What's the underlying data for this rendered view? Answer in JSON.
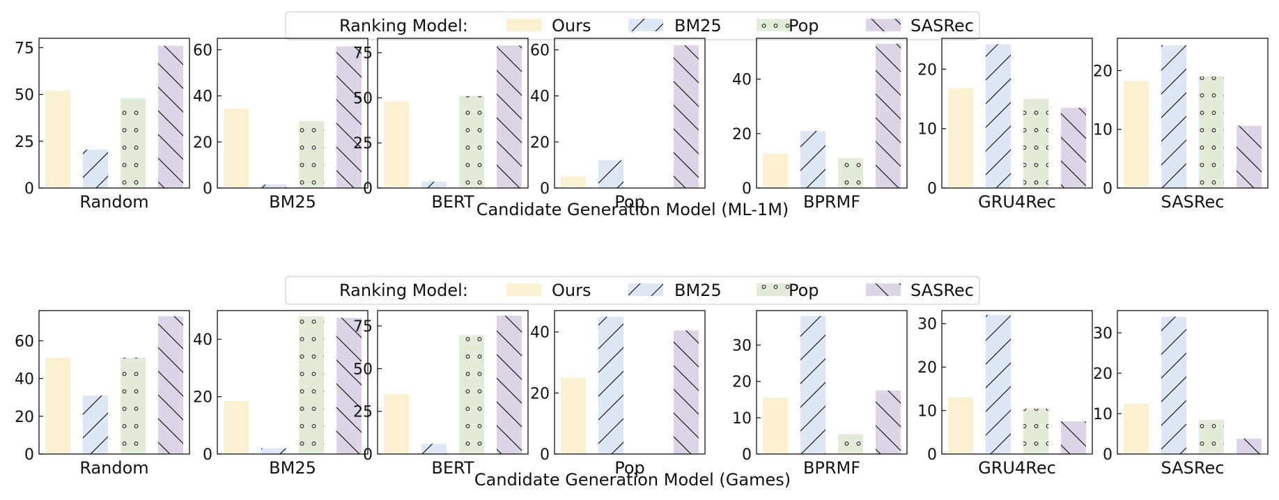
{
  "legend": {
    "title": "Ranking Model:",
    "items": [
      {
        "label": "Ours",
        "color": "#fbf0d2",
        "pattern": "none"
      },
      {
        "label": "BM25",
        "color": "#dde7f5",
        "pattern": "forward-slash"
      },
      {
        "label": "Pop",
        "color": "#e2ecd8",
        "pattern": "dots"
      },
      {
        "label": "SASRec",
        "color": "#ddd5e7",
        "pattern": "back-slash"
      }
    ]
  },
  "chart_data": [
    {
      "type": "bar",
      "xlabel": "Candidate Generation Model (ML-1M)",
      "subplots": [
        {
          "title": "Random",
          "ylim": [
            0,
            80
          ],
          "yticks": [
            "0",
            "25",
            "50",
            "75"
          ],
          "series": [
            {
              "name": "Ours",
              "value": 52
            },
            {
              "name": "BM25",
              "value": 20.5
            },
            {
              "name": "Pop",
              "value": 48
            },
            {
              "name": "SASRec",
              "value": 76
            }
          ]
        },
        {
          "title": "BM25",
          "ylim": [
            0,
            65
          ],
          "yticks": [
            "0",
            "20",
            "40",
            "60"
          ],
          "series": [
            {
              "name": "Ours",
              "value": 34.5
            },
            {
              "name": "BM25",
              "value": 1.5
            },
            {
              "name": "Pop",
              "value": 29
            },
            {
              "name": "SASRec",
              "value": 61.5
            }
          ]
        },
        {
          "title": "BERT",
          "ylim": [
            0,
            83
          ],
          "yticks": [
            "0",
            "25",
            "50",
            "75"
          ],
          "series": [
            {
              "name": "Ours",
              "value": 48
            },
            {
              "name": "BM25",
              "value": 3.5
            },
            {
              "name": "Pop",
              "value": 51
            },
            {
              "name": "SASRec",
              "value": 79
            }
          ]
        },
        {
          "title": "Pop",
          "ylim": [
            0,
            65
          ],
          "yticks": [
            "0",
            "20",
            "40",
            "60"
          ],
          "series": [
            {
              "name": "Ours",
              "value": 5
            },
            {
              "name": "BM25",
              "value": 12
            },
            {
              "name": "Pop",
              "value": 0
            },
            {
              "name": "SASRec",
              "value": 62
            }
          ]
        },
        {
          "title": "BPRMF",
          "ylim": [
            0,
            55
          ],
          "yticks": [
            "0",
            "20",
            "40"
          ],
          "series": [
            {
              "name": "Ours",
              "value": 12.5
            },
            {
              "name": "BM25",
              "value": 21
            },
            {
              "name": "Pop",
              "value": 11
            },
            {
              "name": "SASRec",
              "value": 53
            }
          ]
        },
        {
          "title": "GRU4Rec",
          "ylim": [
            0,
            25.2
          ],
          "yticks": [
            "0",
            "10",
            "20"
          ],
          "series": [
            {
              "name": "Ours",
              "value": 16.8
            },
            {
              "name": "BM25",
              "value": 24.2
            },
            {
              "name": "Pop",
              "value": 15
            },
            {
              "name": "SASRec",
              "value": 13.5
            }
          ]
        },
        {
          "title": "SASRec",
          "ylim": [
            0,
            25.5
          ],
          "yticks": [
            "0",
            "10",
            "20"
          ],
          "series": [
            {
              "name": "Ours",
              "value": 18.2
            },
            {
              "name": "BM25",
              "value": 24.3
            },
            {
              "name": "Pop",
              "value": 19
            },
            {
              "name": "SASRec",
              "value": 10.6
            }
          ]
        }
      ]
    },
    {
      "type": "bar",
      "xlabel": "Candidate Generation Model (Games)",
      "subplots": [
        {
          "title": "Random",
          "ylim": [
            0,
            76
          ],
          "yticks": [
            "0",
            "20",
            "40",
            "60"
          ],
          "series": [
            {
              "name": "Ours",
              "value": 51
            },
            {
              "name": "BM25",
              "value": 31
            },
            {
              "name": "Pop",
              "value": 51
            },
            {
              "name": "SASRec",
              "value": 73
            }
          ]
        },
        {
          "title": "BM25",
          "ylim": [
            0,
            50
          ],
          "yticks": [
            "0",
            "20",
            "40"
          ],
          "series": [
            {
              "name": "Ours",
              "value": 18.5
            },
            {
              "name": "BM25",
              "value": 2
            },
            {
              "name": "Pop",
              "value": 48
            },
            {
              "name": "SASRec",
              "value": 47.5
            }
          ]
        },
        {
          "title": "BERT",
          "ylim": [
            0,
            84
          ],
          "yticks": [
            "0",
            "25",
            "50",
            "75"
          ],
          "series": [
            {
              "name": "Ours",
              "value": 35
            },
            {
              "name": "BM25",
              "value": 6
            },
            {
              "name": "Pop",
              "value": 69.5
            },
            {
              "name": "SASRec",
              "value": 81
            }
          ]
        },
        {
          "title": "Pop",
          "ylim": [
            0,
            47
          ],
          "yticks": [
            "0",
            "20",
            "40"
          ],
          "series": [
            {
              "name": "Ours",
              "value": 25
            },
            {
              "name": "BM25",
              "value": 45
            },
            {
              "name": "Pop",
              "value": 0
            },
            {
              "name": "SASRec",
              "value": 40.5
            }
          ]
        },
        {
          "title": "BPRMF",
          "ylim": [
            0,
            39.5
          ],
          "yticks": [
            "0",
            "10",
            "20",
            "30"
          ],
          "series": [
            {
              "name": "Ours",
              "value": 15.5
            },
            {
              "name": "BM25",
              "value": 38
            },
            {
              "name": "Pop",
              "value": 5.5
            },
            {
              "name": "SASRec",
              "value": 17.5
            }
          ]
        },
        {
          "title": "GRU4Rec",
          "ylim": [
            0,
            33
          ],
          "yticks": [
            "0",
            "10",
            "20",
            "30"
          ],
          "series": [
            {
              "name": "Ours",
              "value": 13
            },
            {
              "name": "BM25",
              "value": 32
            },
            {
              "name": "Pop",
              "value": 10.5
            },
            {
              "name": "SASRec",
              "value": 7.5
            }
          ]
        },
        {
          "title": "SASRec",
          "ylim": [
            0,
            35.5
          ],
          "yticks": [
            "0",
            "10",
            "20",
            "30"
          ],
          "series": [
            {
              "name": "Ours",
              "value": 12.5
            },
            {
              "name": "BM25",
              "value": 34
            },
            {
              "name": "Pop",
              "value": 8.5
            },
            {
              "name": "SASRec",
              "value": 3.8
            }
          ]
        }
      ]
    }
  ]
}
